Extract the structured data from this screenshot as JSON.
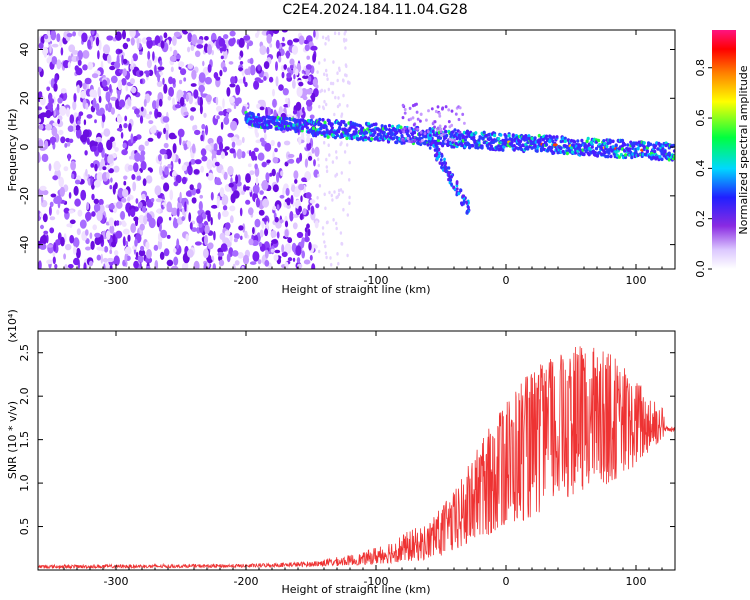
{
  "title": "C2E4.2024.184.11.04.G28",
  "chart_data": [
    {
      "type": "heatmap",
      "xlabel": "Height of straight line (km)",
      "ylabel": "Frequency (Hz)",
      "xlim": [
        -360,
        130
      ],
      "ylim": [
        -50,
        48
      ],
      "xticks": [
        -300,
        -200,
        -100,
        0,
        100
      ],
      "yticks": [
        -40,
        -20,
        0,
        20,
        40
      ],
      "colorbar": {
        "label": "Normalized spectral amplitude",
        "range": [
          0.0,
          0.95
        ],
        "ticks": [
          "0.0",
          "0.2",
          "0.4",
          "0.6",
          "0.8"
        ],
        "colormap": "rainbow (white-purple-blue-cyan-green-yellow-red-pink)"
      },
      "features": {
        "noise_region_x": [
          -360,
          -145
        ],
        "trace_start_x": -200,
        "trace_start_y": 12,
        "trace_end_x": 130,
        "trace_end_y": -2,
        "spur_x": -30,
        "spur_y_max": -26
      }
    },
    {
      "type": "line",
      "xlabel": "Height of straight line (km)",
      "ylabel": "SNR (10 * v/v)",
      "yscale_label": "(x10⁴)",
      "xlim": [
        -360,
        130
      ],
      "ylim": [
        0,
        2.75
      ],
      "xticks": [
        -300,
        -200,
        -100,
        0,
        100
      ],
      "yticks": [
        0.5,
        1.0,
        1.5,
        2.0,
        2.5
      ],
      "series": [
        {
          "color": "#ee3333",
          "envelope": {
            "x": [
              -360,
              -200,
              -150,
              -110,
              -90,
              -60,
              -40,
              -20,
              0,
              20,
              40,
              60,
              80,
              100,
              120,
              130
            ],
            "y_low": [
              0.02,
              0.03,
              0.04,
              0.06,
              0.08,
              0.12,
              0.2,
              0.35,
              0.5,
              0.6,
              0.8,
              0.9,
              1.0,
              1.2,
              1.5,
              1.62
            ],
            "y_high": [
              0.06,
              0.07,
              0.1,
              0.2,
              0.35,
              0.55,
              0.9,
              1.45,
              2.0,
              2.3,
              2.5,
              2.6,
              2.5,
              2.2,
              1.9,
              1.65
            ]
          }
        }
      ]
    }
  ]
}
